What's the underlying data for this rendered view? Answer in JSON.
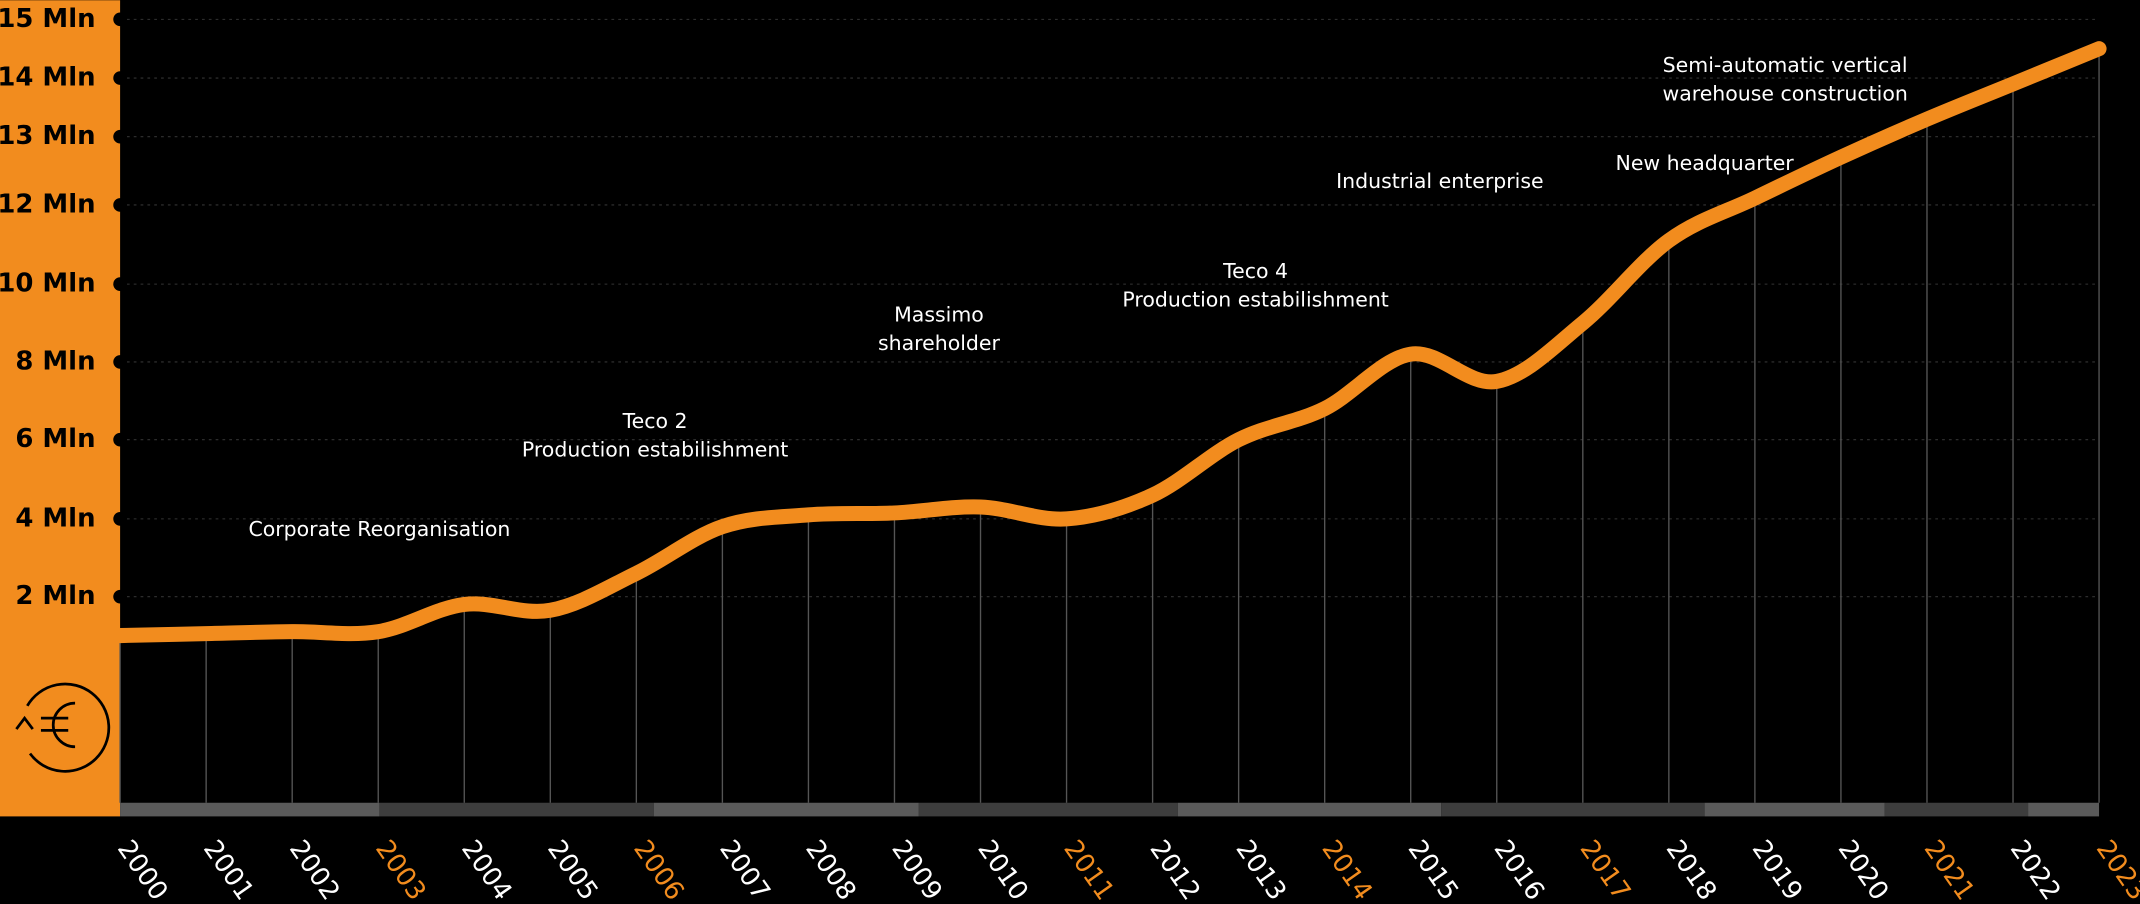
{
  "chart_data": {
    "type": "line",
    "categories": [
      "2000",
      "2001",
      "2002",
      "2003",
      "2004",
      "2005",
      "2006",
      "2007",
      "2008",
      "2009",
      "2010",
      "2011",
      "2012",
      "2013",
      "2014",
      "2015",
      "2016",
      "2017",
      "2018",
      "2019",
      "2020",
      "2021",
      "2022",
      "2023"
    ],
    "label_colors": [
      "#fff",
      "#fff",
      "#fff",
      "#f28c1e",
      "#fff",
      "#fff",
      "#f28c1e",
      "#fff",
      "#fff",
      "#fff",
      "#fff",
      "#f28c1e",
      "#fff",
      "#fff",
      "#f28c1e",
      "#fff",
      "#fff",
      "#f28c1e",
      "#fff",
      "#fff",
      "#fff",
      "#f28c1e",
      "#fff",
      "#f28c1e"
    ],
    "series": [
      {
        "color": "#f28c1e",
        "values": [
          1.0,
          1.05,
          1.1,
          1.1,
          1.8,
          1.65,
          2.6,
          3.8,
          4.1,
          4.15,
          4.3,
          4.0,
          4.6,
          6.0,
          6.8,
          8.2,
          7.5,
          9.0,
          11.1,
          12.1,
          12.7,
          13.3,
          13.9,
          14.5
        ]
      }
    ],
    "yticks": [
      {
        "value": 15,
        "label": "15 Mln"
      },
      {
        "value": 14,
        "label": "14 Mln"
      },
      {
        "value": 13,
        "label": "13 Mln"
      },
      {
        "value": 12,
        "label": "12 Mln"
      },
      {
        "value": 10,
        "label": "10 Mln"
      },
      {
        "value": 8,
        "label": "8 Mln"
      },
      {
        "value": 6,
        "label": "6 Mln"
      },
      {
        "value": 4,
        "label": "4 Mln"
      },
      {
        "value": 2,
        "label": "2 Mln"
      }
    ],
    "grid": true,
    "annotations": [
      [
        "Corporate Reorganisation"
      ],
      [
        "Teco 2",
        "Production estabilishment"
      ],
      [
        "Massimo",
        "shareholder"
      ],
      [
        "Teco 4",
        "Production estabilishment"
      ],
      [
        "Industrial enterprise"
      ],
      [
        "New headquarter"
      ],
      [
        "Semi-automatic vertical",
        "warehouse construction"
      ]
    ]
  }
}
